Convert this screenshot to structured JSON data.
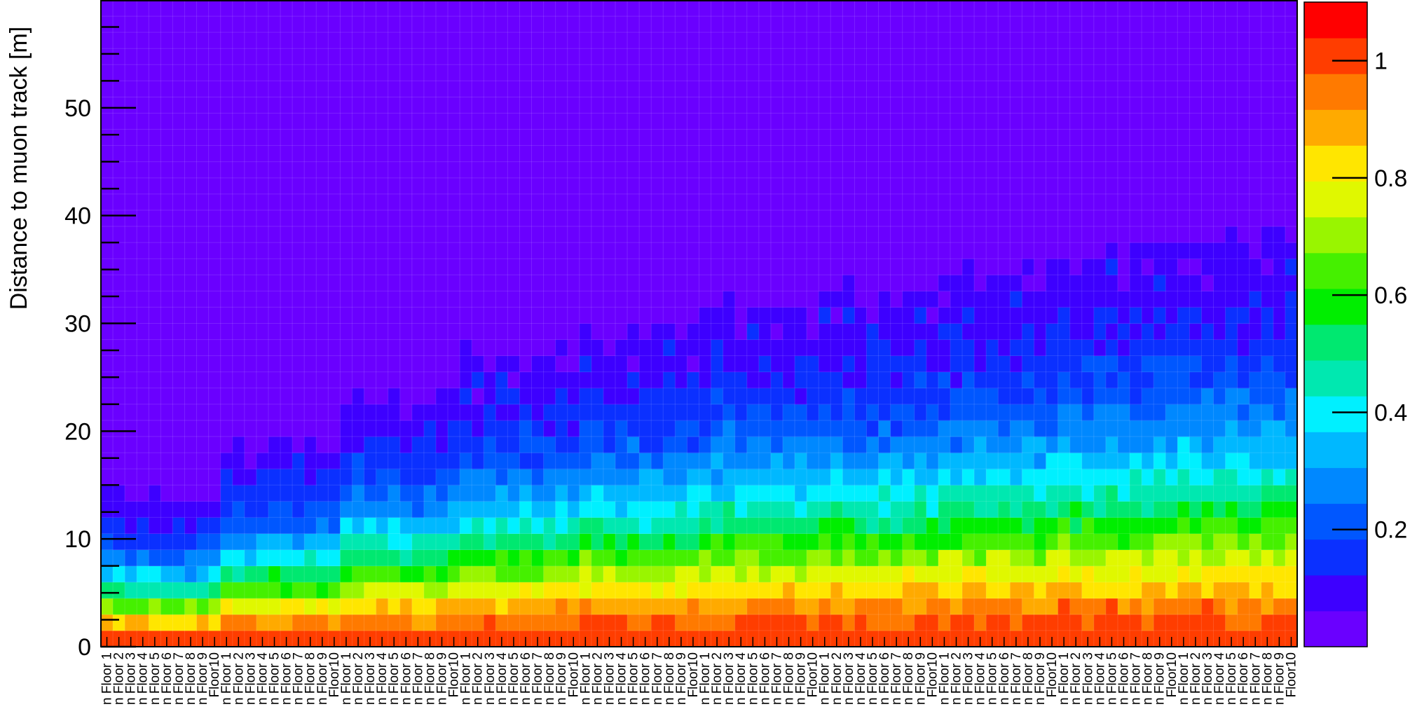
{
  "chart_data": {
    "type": "heatmap",
    "title": "",
    "ylabel": "Distance to muon track [m]",
    "xlabel": "",
    "groups": 10,
    "floors_per_group": 10,
    "x_categories_pattern": "...n Floor {n} / Floor{n}",
    "x_tick_labels": [
      "n Floor 1",
      "n Floor 2",
      "n Floor 3",
      "n Floor 4",
      "n Floor 5",
      "n Floor 6",
      "n Floor 7",
      "n Floor 8",
      "n Floor 9",
      "Floor10"
    ],
    "ylim": [
      0,
      60
    ],
    "y_ticks": [
      0,
      10,
      20,
      30,
      40,
      50
    ],
    "y_bin_width": 1.5,
    "zlim": [
      0,
      1.1
    ],
    "z_ticks": [
      0.2,
      0.4,
      0.6,
      0.8,
      1
    ],
    "z_tick_labels": [
      "0.2",
      "0.4",
      "0.6",
      "0.8",
      "1"
    ],
    "extent_per_group_m": [
      14,
      19,
      24,
      27,
      30,
      32,
      33,
      35,
      37,
      38
    ],
    "description_profile": "value ~1.0 near 0 m, falling smoothly with distance; range of non-zero values grows with group index",
    "palette": [
      "#6a00ff",
      "#3d00ff",
      "#0b30ff",
      "#0057ff",
      "#0088ff",
      "#00b8ff",
      "#00f0ff",
      "#00e8b0",
      "#00e870",
      "#00ee00",
      "#45f000",
      "#99f500",
      "#e0f800",
      "#ffe600",
      "#ffaa00",
      "#ff7a00",
      "#ff3d00",
      "#ff0000"
    ],
    "grid": true,
    "legend": "color scale on right"
  }
}
